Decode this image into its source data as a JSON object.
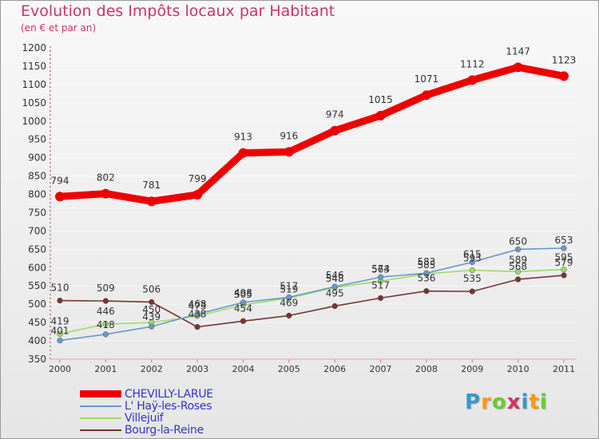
{
  "title": "Evolution des Impôts locaux par Habitant",
  "subtitle": "(en € et par an)",
  "logo": {
    "text": "Proxiti",
    "letters": [
      "P",
      "r",
      "o",
      "x",
      "i",
      "t",
      "i"
    ],
    "colors": [
      "#3399cc",
      "#ff9900",
      "#66cc33",
      "#cc3366",
      "#3399cc",
      "#ff9900",
      "#66cc33"
    ]
  },
  "legend": [
    {
      "label": "CHEVILLY-LARUE"
    },
    {
      "label": "L' Haÿ-les-Roses"
    },
    {
      "label": "Villejuif"
    },
    {
      "label": "Bourg-la-Reine"
    }
  ],
  "chart_data": {
    "type": "line",
    "title": "Evolution des Impôts locaux par Habitant",
    "subtitle": "(en € et par an)",
    "xlabel": "",
    "ylabel": "",
    "ylim": [
      350,
      1200
    ],
    "y_ticks": [
      350,
      400,
      450,
      500,
      550,
      600,
      650,
      700,
      750,
      800,
      850,
      900,
      950,
      1000,
      1050,
      1100,
      1150,
      1200
    ],
    "x": [
      "2000",
      "2001",
      "2002",
      "2003",
      "2004",
      "2005",
      "2006",
      "2007",
      "2008",
      "2009",
      "2010",
      "2011"
    ],
    "legend_position": "bottom-left",
    "series": [
      {
        "name": "CHEVILLY-LARUE",
        "color": "#ee0000",
        "values": [
          794,
          802,
          781,
          799,
          913,
          916,
          974,
          1015,
          1071,
          1112,
          1147,
          1123
        ]
      },
      {
        "name": "L' Haÿ-les-Roses",
        "color": "#6699cc",
        "values": [
          401,
          418,
          439,
          473,
          505,
          519,
          548,
          574,
          585,
          615,
          650,
          653
        ]
      },
      {
        "name": "Villejuif",
        "color": "#99dd66",
        "values": [
          419,
          446,
          450,
          468,
          498,
          517,
          546,
          563,
          583,
          593,
          589,
          595
        ]
      },
      {
        "name": "Bourg-la-Reine",
        "color": "#773333",
        "values": [
          510,
          509,
          506,
          438,
          454,
          469,
          495,
          517,
          536,
          535,
          568,
          579
        ]
      }
    ]
  }
}
